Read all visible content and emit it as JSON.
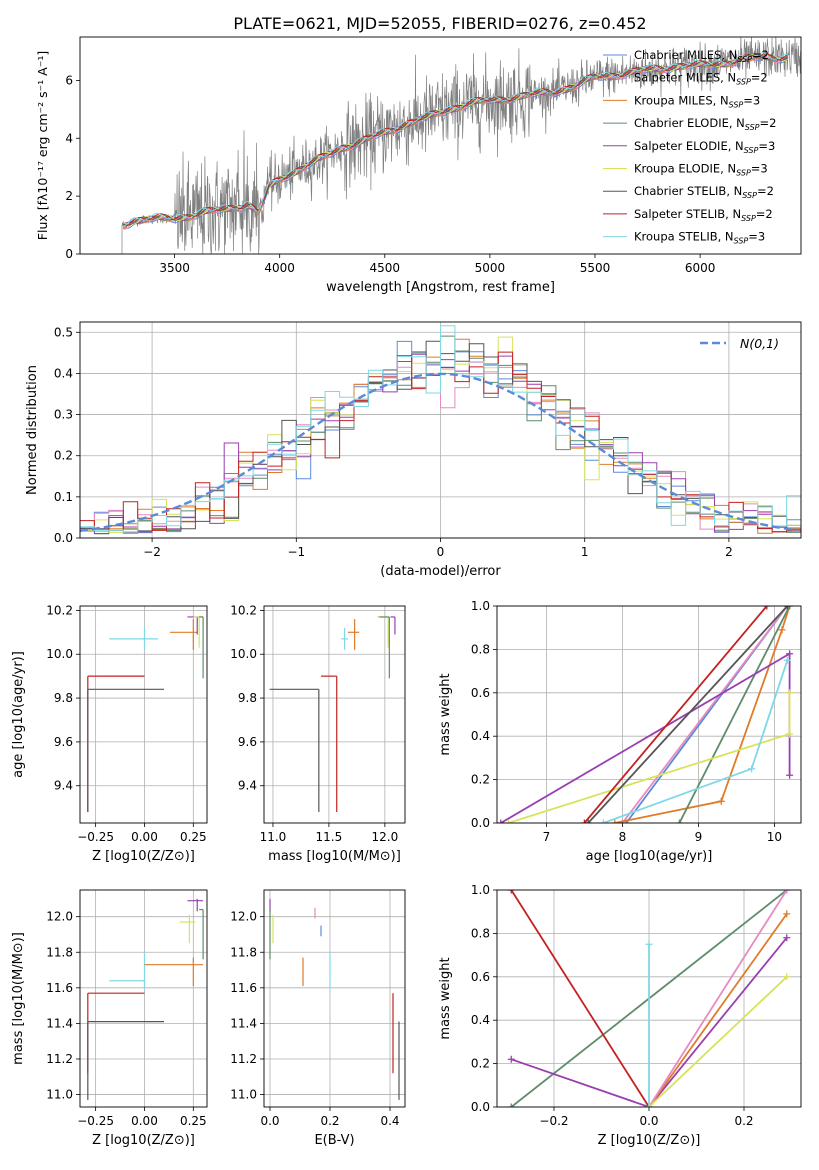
{
  "figure_title": "PLATE=0621, MJD=52055, FIBERID=0276, z=0.452",
  "chart_data": [
    {
      "id": "spectrum",
      "type": "line",
      "xlabel": "wavelength [Angstrom, rest frame]",
      "ylabel": "Flux [fλ10⁻¹⁷ erg cm⁻² s⁻¹ A⁻¹]",
      "xlim": [
        3050,
        6480
      ],
      "ylim": [
        0,
        7.5
      ],
      "xticks": [
        "3500",
        "4000",
        "4500",
        "5000",
        "5500",
        "6000"
      ],
      "yticks": [
        "0",
        "2",
        "4",
        "6"
      ],
      "legend_placement": "top-right",
      "legend": [
        {
          "label": "Chabrier MILES, N_SSP=2",
          "color": "#5b8bd8"
        },
        {
          "label": "Salpeter MILES, N_SSP=2",
          "color": "#e78ac3"
        },
        {
          "label": "Kroupa MILES, N_SSP=3",
          "color": "#e07b28"
        },
        {
          "label": "Chabrier ELODIE, N_SSP=2",
          "color": "#5e8c6a"
        },
        {
          "label": "Salpeter ELODIE, N_SSP=3",
          "color": "#9a3fb0"
        },
        {
          "label": "Kroupa ELODIE, N_SSP=3",
          "color": "#d8e35a"
        },
        {
          "label": "Chabrier STELIB, N_SSP=2",
          "color": "#555555"
        },
        {
          "label": "Salpeter STELIB, N_SSP=2",
          "color": "#c42121"
        },
        {
          "label": "Kroupa STELIB, N_SSP=3",
          "color": "#7fd8e6"
        }
      ],
      "model_shape": {
        "x": [
          3250,
          3300,
          3400,
          3500,
          3600,
          3700,
          3800,
          3850,
          3900,
          3950,
          4000,
          4100,
          4200,
          4300,
          4400,
          4500,
          4600,
          4700,
          4800,
          4900,
          5000,
          5100,
          5200,
          5300,
          5400,
          5500,
          5600,
          5700,
          5800,
          5900,
          6000,
          6100,
          6200,
          6300
        ],
        "y": [
          1.0,
          1.15,
          1.2,
          1.25,
          1.35,
          1.5,
          1.65,
          1.7,
          1.4,
          2.3,
          2.6,
          2.95,
          3.3,
          3.7,
          3.9,
          4.2,
          4.5,
          4.7,
          5.0,
          5.2,
          5.3,
          5.4,
          5.5,
          5.6,
          5.8,
          6.1,
          6.2,
          6.3,
          6.4,
          6.5,
          6.5,
          6.6,
          6.7,
          6.8
        ]
      },
      "data_start_x": 3250,
      "data_end_x": 6480
    },
    {
      "id": "residuals",
      "type": "bar",
      "xlabel": "(data-model)/error",
      "ylabel": "Normed distribution",
      "xlim": [
        -2.5,
        2.5
      ],
      "ylim": [
        0,
        0.525
      ],
      "xticks": [
        "−2",
        "−1",
        "0",
        "1",
        "2"
      ],
      "yticks": [
        "0.0",
        "0.1",
        "0.2",
        "0.3",
        "0.4",
        "0.5"
      ],
      "legend_placement": "top-right",
      "legend": [
        {
          "label": "N(0,1)",
          "color": "#5b8bd8",
          "style": "dashed"
        }
      ],
      "bin_width": 0.1
    },
    {
      "id": "age-vs-Z",
      "type": "scatter",
      "xlabel": "Z [log10(Z/Z⊙)]",
      "ylabel": "age  [log10(age/yr)]",
      "xlim": [
        -0.33,
        0.32
      ],
      "ylim": [
        9.23,
        10.22
      ],
      "xticks": [
        "−0.25",
        "0.00",
        "0.25"
      ],
      "yticks": [
        "9.4",
        "9.6",
        "9.8",
        "10.0",
        "10.2"
      ],
      "points": [
        {
          "x": -0.29,
          "y": 9.9,
          "color": "#c42121",
          "xerr": [
            0,
            0.29
          ],
          "yerr": [
            0.62,
            0
          ]
        },
        {
          "x": -0.29,
          "y": 9.84,
          "color": "#555555",
          "xerr": [
            0,
            0.39
          ],
          "yerr": [
            0.56,
            0
          ]
        },
        {
          "x": 0.0,
          "y": 10.07,
          "color": "#7fd8e6",
          "xerr": [
            0.18,
            0.07
          ],
          "yerr": [
            0.05,
            0.05
          ]
        },
        {
          "x": 0.25,
          "y": 10.1,
          "color": "#e07b28",
          "xerr": [
            0.12,
            0.02
          ],
          "yerr": [
            0.08,
            0.06
          ]
        },
        {
          "x": 0.27,
          "y": 10.17,
          "color": "#9a3fb0",
          "xerr": [
            0.05,
            0.03
          ],
          "yerr": [
            0.08,
            0
          ]
        },
        {
          "x": 0.28,
          "y": 10.17,
          "color": "#d8e35a",
          "xerr": [
            0.03,
            0.02
          ],
          "yerr": [
            0.14,
            0
          ]
        },
        {
          "x": 0.3,
          "y": 10.17,
          "color": "#5e8c6a",
          "xerr": [
            0.02,
            0
          ],
          "yerr": [
            0.28,
            0
          ]
        }
      ]
    },
    {
      "id": "age-vs-mass",
      "type": "scatter",
      "xlabel": "mass [log10(M/M⊙)]",
      "ylabel": "",
      "xlim": [
        10.92,
        12.18
      ],
      "ylim": [
        9.23,
        10.22
      ],
      "xticks": [
        "11.0",
        "11.5",
        "12.0"
      ],
      "yticks": [
        "9.4",
        "9.6",
        "9.8",
        "10.0",
        "10.2"
      ],
      "points": [
        {
          "x": 11.57,
          "y": 9.9,
          "color": "#c42121",
          "xerr": [
            0.14,
            0
          ],
          "yerr": [
            0.62,
            0
          ]
        },
        {
          "x": 11.41,
          "y": 9.84,
          "color": "#555555",
          "xerr": [
            0.44,
            0
          ],
          "yerr": [
            0.56,
            0
          ]
        },
        {
          "x": 11.64,
          "y": 10.07,
          "color": "#7fd8e6",
          "xerr": [
            0.03,
            0.03
          ],
          "yerr": [
            0.05,
            0.05
          ]
        },
        {
          "x": 11.73,
          "y": 10.1,
          "color": "#e07b28",
          "xerr": [
            0.06,
            0.04
          ],
          "yerr": [
            0.08,
            0.06
          ]
        },
        {
          "x": 12.09,
          "y": 10.17,
          "color": "#9a3fb0",
          "xerr": [
            0.04,
            0
          ],
          "yerr": [
            0.08,
            0
          ]
        },
        {
          "x": 12.03,
          "y": 10.17,
          "color": "#d8e35a",
          "xerr": [
            0.1,
            0
          ],
          "yerr": [
            0.14,
            0
          ]
        },
        {
          "x": 12.04,
          "y": 10.17,
          "color": "#5e8c6a",
          "xerr": [
            0.09,
            0
          ],
          "yerr": [
            0.28,
            0
          ]
        }
      ]
    },
    {
      "id": "mass-weight-vs-age",
      "type": "line",
      "xlabel": "age  [log10(age/yr)]",
      "ylabel": "mass weight",
      "xlim": [
        6.35,
        10.35
      ],
      "ylim": [
        0,
        1
      ],
      "xticks": [
        "7",
        "8",
        "9",
        "10"
      ],
      "yticks": [
        "0.0",
        "0.2",
        "0.4",
        "0.6",
        "0.8",
        "1.0"
      ],
      "series": [
        {
          "color": "#5b8bd8",
          "x": [
            8.05,
            10.17
          ],
          "y": [
            0,
            1
          ]
        },
        {
          "color": "#e78ac3",
          "x": [
            8.0,
            10.17
          ],
          "y": [
            0,
            1
          ]
        },
        {
          "color": "#e07b28",
          "x": [
            7.9,
            9.3,
            10.1,
            10.2
          ],
          "y": [
            0,
            0.1,
            0.89,
            1
          ]
        },
        {
          "color": "#5e8c6a",
          "x": [
            8.75,
            10.2
          ],
          "y": [
            0,
            1
          ]
        },
        {
          "color": "#9a3fb0",
          "x": [
            6.4,
            10.2,
            10.2
          ],
          "y": [
            0,
            0.78,
            0.22
          ]
        },
        {
          "color": "#d8e35a",
          "x": [
            6.5,
            10.2,
            10.2
          ],
          "y": [
            0,
            0.41,
            0.6
          ]
        },
        {
          "color": "#555555",
          "x": [
            7.55,
            10.17
          ],
          "y": [
            0,
            1
          ]
        },
        {
          "color": "#c42121",
          "x": [
            7.5,
            9.9
          ],
          "y": [
            0,
            1
          ]
        },
        {
          "color": "#7fd8e6",
          "x": [
            7.75,
            9.7,
            10.17
          ],
          "y": [
            0,
            0.25,
            0.75
          ]
        }
      ]
    },
    {
      "id": "mass-vs-Z",
      "type": "scatter",
      "xlabel": "Z [log10(Z/Z⊙)]",
      "ylabel": "mass [log10(M/M⊙)]",
      "xlim": [
        -0.33,
        0.32
      ],
      "ylim": [
        10.93,
        12.15
      ],
      "xticks": [
        "−0.25",
        "0.00",
        "0.25"
      ],
      "yticks": [
        "11.0",
        "11.2",
        "11.4",
        "11.6",
        "11.8",
        "12.0"
      ],
      "points": [
        {
          "x": -0.29,
          "y": 11.57,
          "color": "#c42121",
          "xerr": [
            0,
            0.29
          ],
          "yerr": [
            0.45,
            0
          ]
        },
        {
          "x": -0.29,
          "y": 11.41,
          "color": "#555555",
          "xerr": [
            0,
            0.39
          ],
          "yerr": [
            0.44,
            0
          ]
        },
        {
          "x": 0.0,
          "y": 11.64,
          "color": "#7fd8e6",
          "xerr": [
            0.18,
            0.0
          ],
          "yerr": [
            0.05,
            0.16
          ]
        },
        {
          "x": 0.25,
          "y": 11.73,
          "color": "#e07b28",
          "xerr": [
            0.25,
            0.05
          ],
          "yerr": [
            0.12,
            0.04
          ]
        },
        {
          "x": 0.27,
          "y": 12.09,
          "color": "#9a3fb0",
          "xerr": [
            0.05,
            0.03
          ],
          "yerr": [
            0.06,
            0.01
          ]
        },
        {
          "x": 0.23,
          "y": 11.97,
          "color": "#d8e35a",
          "xerr": [
            0.05,
            0.03
          ],
          "yerr": [
            0.12,
            0.04
          ]
        },
        {
          "x": 0.3,
          "y": 12.04,
          "color": "#5e8c6a",
          "xerr": [
            0.02,
            0
          ],
          "yerr": [
            0.28,
            0
          ]
        }
      ]
    },
    {
      "id": "mass-vs-EBV",
      "type": "scatter",
      "xlabel": "E(B-V)",
      "ylabel": "",
      "xlim": [
        -0.02,
        0.45
      ],
      "ylim": [
        10.93,
        12.15
      ],
      "xticks": [
        "0.0",
        "0.2",
        "0.4"
      ],
      "yticks": [
        "11.0",
        "11.2",
        "11.4",
        "11.6",
        "11.8",
        "12.0"
      ],
      "points": [
        {
          "x": 0.41,
          "y": 11.57,
          "color": "#c42121",
          "xerr": [
            0,
            0
          ],
          "yerr": [
            0.45,
            0
          ]
        },
        {
          "x": 0.43,
          "y": 11.41,
          "color": "#555555",
          "xerr": [
            0,
            0
          ],
          "yerr": [
            0.44,
            0
          ]
        },
        {
          "x": 0.2,
          "y": 11.64,
          "color": "#7fd8e6",
          "xerr": [
            0,
            0
          ],
          "yerr": [
            0.05,
            0.16
          ]
        },
        {
          "x": 0.11,
          "y": 11.73,
          "color": "#e07b28",
          "xerr": [
            0,
            0
          ],
          "yerr": [
            0.12,
            0.04
          ]
        },
        {
          "x": 0.0,
          "y": 12.09,
          "color": "#9a3fb0",
          "xerr": [
            0,
            0
          ],
          "yerr": [
            0.06,
            0.01
          ]
        },
        {
          "x": 0.01,
          "y": 11.97,
          "color": "#d8e35a",
          "xerr": [
            0,
            0
          ],
          "yerr": [
            0.12,
            0.04
          ]
        },
        {
          "x": 0.0,
          "y": 12.04,
          "color": "#5e8c6a",
          "xerr": [
            0,
            0
          ],
          "yerr": [
            0.28,
            0
          ]
        },
        {
          "x": 0.17,
          "y": 11.92,
          "color": "#5b8bd8",
          "xerr": [
            0,
            0
          ],
          "yerr": [
            0.03,
            0.03
          ]
        },
        {
          "x": 0.15,
          "y": 12.02,
          "color": "#e78ac3",
          "xerr": [
            0,
            0
          ],
          "yerr": [
            0.03,
            0.03
          ]
        }
      ]
    },
    {
      "id": "mass-weight-vs-Z",
      "type": "line",
      "xlabel": "Z [log10(Z/Z⊙)]",
      "ylabel": "mass weight",
      "xlim": [
        -0.32,
        0.32
      ],
      "ylim": [
        0,
        1
      ],
      "xticks": [
        "−0.2",
        "0.0",
        "0.2"
      ],
      "yticks": [
        "0.0",
        "0.2",
        "0.4",
        "0.6",
        "0.8",
        "1.0"
      ],
      "series": [
        {
          "color": "#5e8c6a",
          "x": [
            -0.29,
            0.29
          ],
          "y": [
            0,
            1
          ]
        },
        {
          "color": "#c42121",
          "x": [
            -0.29,
            0
          ],
          "y": [
            1,
            0
          ]
        },
        {
          "color": "#9a3fb0",
          "x": [
            -0.29,
            0,
            0.29
          ],
          "y": [
            0.22,
            0,
            0.78
          ]
        },
        {
          "color": "#e07b28",
          "x": [
            0,
            0.29
          ],
          "y": [
            0,
            0.89
          ]
        },
        {
          "color": "#e78ac3",
          "x": [
            0,
            0.29
          ],
          "y": [
            0,
            1
          ]
        },
        {
          "color": "#d8e35a",
          "x": [
            0,
            0.29
          ],
          "y": [
            0,
            0.6
          ]
        },
        {
          "color": "#7fd8e6",
          "x": [
            0,
            0
          ],
          "y": [
            0,
            0.75
          ]
        }
      ]
    }
  ]
}
